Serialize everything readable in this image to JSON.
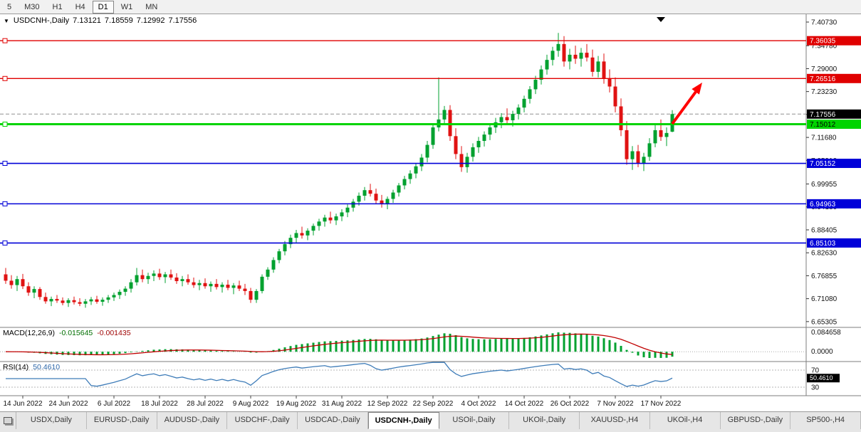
{
  "toolbar": {
    "timeframes": [
      "5",
      "M30",
      "H1",
      "H4",
      "D1",
      "W1",
      "MN"
    ],
    "active": "D1"
  },
  "icons": {
    "collapse": "▼"
  },
  "chart_header": {
    "symbol": "USDCNH-,Daily",
    "open": "7.13121",
    "high": "7.18559",
    "low": "7.12992",
    "close": "7.17556"
  },
  "chart_data": {
    "type": "candlestick",
    "symbol": "USDCNH-",
    "timeframe": "Daily",
    "colors": {
      "up": "#00a12f",
      "down": "#e01212",
      "macd_hist": "#00a12f",
      "macd_signal": "#c00000",
      "rsi": "#3e7cb8"
    },
    "ohlc": [
      [
        6.772,
        6.788,
        6.748,
        6.756
      ],
      [
        6.756,
        6.77,
        6.736,
        6.745
      ],
      [
        6.745,
        6.768,
        6.73,
        6.76
      ],
      [
        6.76,
        6.773,
        6.735,
        6.742
      ],
      [
        6.742,
        6.752,
        6.718,
        6.726
      ],
      [
        6.726,
        6.742,
        6.712,
        6.735
      ],
      [
        6.735,
        6.74,
        6.708,
        6.715
      ],
      [
        6.715,
        6.726,
        6.698,
        6.704
      ],
      [
        6.704,
        6.716,
        6.692,
        6.71
      ],
      [
        6.71,
        6.72,
        6.7,
        6.706
      ],
      [
        6.706,
        6.714,
        6.694,
        6.7
      ],
      [
        6.7,
        6.712,
        6.69,
        6.707
      ],
      [
        6.707,
        6.716,
        6.696,
        6.702
      ],
      [
        6.702,
        6.712,
        6.692,
        6.698
      ],
      [
        6.698,
        6.71,
        6.688,
        6.704
      ],
      [
        6.704,
        6.715,
        6.695,
        6.709
      ],
      [
        6.709,
        6.718,
        6.698,
        6.703
      ],
      [
        6.703,
        6.714,
        6.693,
        6.708
      ],
      [
        6.708,
        6.72,
        6.7,
        6.714
      ],
      [
        6.714,
        6.726,
        6.705,
        6.72
      ],
      [
        6.72,
        6.734,
        6.71,
        6.728
      ],
      [
        6.728,
        6.742,
        6.718,
        6.736
      ],
      [
        6.736,
        6.76,
        6.726,
        6.752
      ],
      [
        6.752,
        6.788,
        6.744,
        6.77
      ],
      [
        6.77,
        6.784,
        6.752,
        6.76
      ],
      [
        6.76,
        6.776,
        6.748,
        6.768
      ],
      [
        6.768,
        6.782,
        6.755,
        6.774
      ],
      [
        6.774,
        6.786,
        6.758,
        6.765
      ],
      [
        6.765,
        6.778,
        6.75,
        6.772
      ],
      [
        6.772,
        6.784,
        6.758,
        6.764
      ],
      [
        6.764,
        6.775,
        6.748,
        6.755
      ],
      [
        6.755,
        6.768,
        6.742,
        6.76
      ],
      [
        6.76,
        6.772,
        6.746,
        6.752
      ],
      [
        6.752,
        6.764,
        6.738,
        6.745
      ],
      [
        6.745,
        6.758,
        6.732,
        6.75
      ],
      [
        6.75,
        6.762,
        6.736,
        6.742
      ],
      [
        6.742,
        6.754,
        6.728,
        6.748
      ],
      [
        6.748,
        6.76,
        6.734,
        6.74
      ],
      [
        6.74,
        6.752,
        6.726,
        6.746
      ],
      [
        6.746,
        6.758,
        6.732,
        6.738
      ],
      [
        6.738,
        6.75,
        6.722,
        6.744
      ],
      [
        6.744,
        6.756,
        6.73,
        6.736
      ],
      [
        6.736,
        6.748,
        6.72,
        6.73
      ],
      [
        6.73,
        6.738,
        6.7,
        6.708
      ],
      [
        6.708,
        6.735,
        6.7,
        6.73
      ],
      [
        6.73,
        6.772,
        6.724,
        6.766
      ],
      [
        6.766,
        6.79,
        6.758,
        6.784
      ],
      [
        6.784,
        6.815,
        6.776,
        6.808
      ],
      [
        6.808,
        6.836,
        6.8,
        6.83
      ],
      [
        6.83,
        6.856,
        6.82,
        6.848
      ],
      [
        6.848,
        6.872,
        6.838,
        6.864
      ],
      [
        6.864,
        6.884,
        6.852,
        6.876
      ],
      [
        6.876,
        6.892,
        6.862,
        6.87
      ],
      [
        6.87,
        6.888,
        6.858,
        6.882
      ],
      [
        6.882,
        6.9,
        6.87,
        6.894
      ],
      [
        6.894,
        6.912,
        6.882,
        6.905
      ],
      [
        6.905,
        6.922,
        6.892,
        6.915
      ],
      [
        6.915,
        6.93,
        6.9,
        6.908
      ],
      [
        6.908,
        6.925,
        6.896,
        6.918
      ],
      [
        6.918,
        6.936,
        6.906,
        6.928
      ],
      [
        6.928,
        6.948,
        6.916,
        6.94
      ],
      [
        6.94,
        6.962,
        6.93,
        6.955
      ],
      [
        6.955,
        6.978,
        6.945,
        6.97
      ],
      [
        6.97,
        6.992,
        6.958,
        6.984
      ],
      [
        6.984,
        7.0,
        6.968,
        6.975
      ],
      [
        6.975,
        6.988,
        6.95,
        6.958
      ],
      [
        6.958,
        6.972,
        6.94,
        6.95
      ],
      [
        6.95,
        6.968,
        6.936,
        6.962
      ],
      [
        6.962,
        6.985,
        6.952,
        6.978
      ],
      [
        6.978,
        7.002,
        6.968,
        6.996
      ],
      [
        6.996,
        7.02,
        6.986,
        7.012
      ],
      [
        7.012,
        7.034,
        7.0,
        7.026
      ],
      [
        7.026,
        7.052,
        7.014,
        7.044
      ],
      [
        7.044,
        7.075,
        7.032,
        7.066
      ],
      [
        7.066,
        7.108,
        7.054,
        7.098
      ],
      [
        7.098,
        7.152,
        7.088,
        7.142
      ],
      [
        7.142,
        7.268,
        7.132,
        7.162
      ],
      [
        7.162,
        7.196,
        7.148,
        7.186
      ],
      [
        7.186,
        7.198,
        7.108,
        7.12
      ],
      [
        7.12,
        7.14,
        7.062,
        7.075
      ],
      [
        7.075,
        7.095,
        7.03,
        7.042
      ],
      [
        7.042,
        7.078,
        7.028,
        7.068
      ],
      [
        7.068,
        7.102,
        7.056,
        7.092
      ],
      [
        7.092,
        7.118,
        7.078,
        7.108
      ],
      [
        7.108,
        7.132,
        7.094,
        7.124
      ],
      [
        7.124,
        7.15,
        7.11,
        7.142
      ],
      [
        7.142,
        7.166,
        7.128,
        7.155
      ],
      [
        7.155,
        7.178,
        7.14,
        7.168
      ],
      [
        7.168,
        7.19,
        7.152,
        7.16
      ],
      [
        7.16,
        7.184,
        7.144,
        7.176
      ],
      [
        7.176,
        7.2,
        7.162,
        7.192
      ],
      [
        7.192,
        7.222,
        7.18,
        7.214
      ],
      [
        7.214,
        7.246,
        7.202,
        7.238
      ],
      [
        7.238,
        7.272,
        7.226,
        7.262
      ],
      [
        7.262,
        7.298,
        7.25,
        7.288
      ],
      [
        7.288,
        7.325,
        7.275,
        7.312
      ],
      [
        7.312,
        7.345,
        7.298,
        7.335
      ],
      [
        7.335,
        7.38,
        7.32,
        7.352
      ],
      [
        7.352,
        7.372,
        7.295,
        7.308
      ],
      [
        7.308,
        7.34,
        7.288,
        7.325
      ],
      [
        7.325,
        7.348,
        7.302,
        7.315
      ],
      [
        7.315,
        7.342,
        7.295,
        7.33
      ],
      [
        7.33,
        7.352,
        7.308,
        7.318
      ],
      [
        7.318,
        7.338,
        7.27,
        7.282
      ],
      [
        7.282,
        7.322,
        7.268,
        7.308
      ],
      [
        7.308,
        7.328,
        7.252,
        7.265
      ],
      [
        7.265,
        7.288,
        7.23,
        7.245
      ],
      [
        7.245,
        7.268,
        7.18,
        7.195
      ],
      [
        7.195,
        7.215,
        7.12,
        7.135
      ],
      [
        7.135,
        7.158,
        7.048,
        7.062
      ],
      [
        7.062,
        7.095,
        7.035,
        7.082
      ],
      [
        7.082,
        7.098,
        7.042,
        7.052
      ],
      [
        7.052,
        7.078,
        7.032,
        7.068
      ],
      [
        7.068,
        7.115,
        7.058,
        7.102
      ],
      [
        7.102,
        7.148,
        7.092,
        7.135
      ],
      [
        7.135,
        7.162,
        7.108,
        7.118
      ],
      [
        7.118,
        7.142,
        7.095,
        7.128
      ],
      [
        7.13121,
        7.18559,
        7.12992,
        7.17556
      ]
    ],
    "time_labels": [
      {
        "i": 3,
        "t": "14 Jun 2022"
      },
      {
        "i": 11,
        "t": "24 Jun 2022"
      },
      {
        "i": 19,
        "t": "6 Jul 2022"
      },
      {
        "i": 27,
        "t": "18 Jul 2022"
      },
      {
        "i": 35,
        "t": "28 Jul 2022"
      },
      {
        "i": 43,
        "t": "9 Aug 2022"
      },
      {
        "i": 51,
        "t": "19 Aug 2022"
      },
      {
        "i": 59,
        "t": "31 Aug 2022"
      },
      {
        "i": 67,
        "t": "12 Sep 2022"
      },
      {
        "i": 75,
        "t": "22 Sep 2022"
      },
      {
        "i": 83,
        "t": "4 Oct 2022"
      },
      {
        "i": 91,
        "t": "14 Oct 2022"
      },
      {
        "i": 99,
        "t": "26 Oct 2022"
      },
      {
        "i": 107,
        "t": "7 Nov 2022"
      },
      {
        "i": 115,
        "t": "17 Nov 2022"
      }
    ],
    "price_axis_labels": [
      "7.40730",
      "7.34780",
      "7.29000",
      "7.23230",
      "7.17460",
      "7.11680",
      "7.05910",
      "6.99955",
      "6.94180",
      "6.88405",
      "6.82630",
      "6.76855",
      "6.71080",
      "6.65305"
    ],
    "levels": [
      {
        "price": 7.36035,
        "label": "7.36035",
        "color": "#e00000",
        "text_color": "#ffffff",
        "width": 1.3
      },
      {
        "price": 7.26516,
        "label": "7.26516",
        "color": "#e00000",
        "text_color": "#ffffff",
        "width": 1.3
      },
      {
        "price": 7.15012,
        "label": "7.15012",
        "color": "#00d400",
        "text_color": "#000000",
        "width": 3
      },
      {
        "price": 7.05152,
        "label": "7.05152",
        "color": "#0000d8",
        "text_color": "#ffffff",
        "width": 1.6
      },
      {
        "price": 6.94963,
        "label": "6.94963",
        "color": "#0000d8",
        "text_color": "#ffffff",
        "width": 1.6
      },
      {
        "price": 6.85103,
        "label": "6.85103",
        "color": "#0000d8",
        "text_color": "#ffffff",
        "width": 1.6
      }
    ],
    "current_price": {
      "price": 7.17556,
      "label": "7.17556",
      "color": "#000000",
      "text_color": "#ffffff"
    },
    "objects": {
      "trend_arrow_color": "#ff0000",
      "scroll_marker_color": "#000000"
    },
    "indicators": {
      "macd": {
        "label": "MACD(12,26,9)",
        "main_value": "-0.015645",
        "signal_value": "-0.001435",
        "upper_label": "0.084658",
        "zero_label": "0.0000"
      },
      "rsi": {
        "label": "RSI(14)",
        "value": "50.4610",
        "upper": "70",
        "lower": "30"
      }
    }
  },
  "tabs": {
    "items": [
      "USDX,Daily",
      "EURUSD-,Daily",
      "AUDUSD-,Daily",
      "USDCHF-,Daily",
      "USDCAD-,Daily",
      "USDCNH-,Daily",
      "USOil-,Daily",
      "UKOil-,Daily",
      "XAUUSD-,H4",
      "UKOil-,H4",
      "GBPUSD-,Daily",
      "SP500-,H4"
    ],
    "active": "USDCNH-,Daily"
  }
}
